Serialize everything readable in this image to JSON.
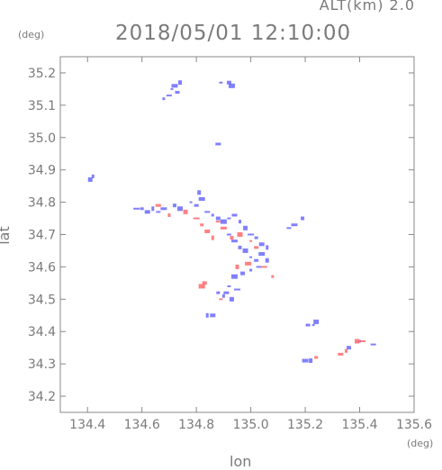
{
  "header": {
    "altitude": "ALT(km)  2.0",
    "timestamp": "2018/05/01  12:10:00"
  },
  "chart_data": {
    "type": "scatter",
    "title": "2018/05/01  12:10:00",
    "subtitle": "ALT(km)  2.0",
    "xlabel": "lon",
    "ylabel": "lat",
    "x_unit": "(deg)",
    "y_unit": "(deg)",
    "xlim": [
      134.3,
      135.6
    ],
    "ylim": [
      34.15,
      35.25
    ],
    "x_ticks": [
      "134.4",
      "134.6",
      "134.8",
      "135.0",
      "135.2",
      "135.4",
      "135.6"
    ],
    "y_ticks": [
      "34.2",
      "34.3",
      "34.4",
      "34.5",
      "34.6",
      "34.7",
      "34.8",
      "34.9",
      "35.0",
      "35.1",
      "35.2"
    ],
    "x_tick_values": [
      134.4,
      134.6,
      134.8,
      135.0,
      135.2,
      135.4,
      135.6
    ],
    "y_tick_values": [
      34.2,
      34.3,
      34.4,
      34.5,
      34.6,
      34.7,
      34.8,
      34.9,
      35.0,
      35.1,
      35.2
    ],
    "colors": {
      "blue": "#6a6aff",
      "red": "#ff6a6a",
      "purple": "#b58ad6"
    },
    "series": [
      {
        "values": [
          [
            134.71,
            35.15
          ],
          [
            134.73,
            35.14
          ],
          [
            134.72,
            35.16
          ],
          [
            134.74,
            35.17
          ],
          [
            134.7,
            35.13
          ],
          [
            134.68,
            35.12
          ],
          [
            134.92,
            35.17
          ],
          [
            134.93,
            35.16
          ],
          [
            134.89,
            35.17
          ],
          [
            134.88,
            34.98
          ],
          [
            134.42,
            34.88
          ],
          [
            134.41,
            34.87
          ],
          [
            134.58,
            34.78
          ],
          [
            134.6,
            34.78
          ],
          [
            134.62,
            34.77
          ],
          [
            134.64,
            34.78
          ],
          [
            134.66,
            34.77
          ],
          [
            134.68,
            34.78
          ],
          [
            134.72,
            34.79
          ],
          [
            134.74,
            34.78
          ],
          [
            134.78,
            34.8
          ],
          [
            134.8,
            34.79
          ],
          [
            134.82,
            34.81
          ],
          [
            134.81,
            34.83
          ],
          [
            134.84,
            34.77
          ],
          [
            134.86,
            34.76
          ],
          [
            134.88,
            34.75
          ],
          [
            134.9,
            34.74
          ],
          [
            134.92,
            34.75
          ],
          [
            134.94,
            34.76
          ],
          [
            134.96,
            34.74
          ],
          [
            134.98,
            34.72
          ],
          [
            135.0,
            34.7
          ],
          [
            135.02,
            34.69
          ],
          [
            135.04,
            34.67
          ],
          [
            135.06,
            34.66
          ],
          [
            134.92,
            34.7
          ],
          [
            134.94,
            34.68
          ],
          [
            134.96,
            34.66
          ],
          [
            134.98,
            34.65
          ],
          [
            135.0,
            34.63
          ],
          [
            135.02,
            34.62
          ],
          [
            135.04,
            34.64
          ],
          [
            135.06,
            34.62
          ],
          [
            135.03,
            34.6
          ],
          [
            135.0,
            34.59
          ],
          [
            134.97,
            34.58
          ],
          [
            134.94,
            34.57
          ],
          [
            134.92,
            34.54
          ],
          [
            134.91,
            34.52
          ],
          [
            134.9,
            34.51
          ],
          [
            134.93,
            34.5
          ],
          [
            134.95,
            34.53
          ],
          [
            134.88,
            34.52
          ],
          [
            134.86,
            34.45
          ],
          [
            134.84,
            34.45
          ],
          [
            135.14,
            34.72
          ],
          [
            135.16,
            34.73
          ],
          [
            135.19,
            34.75
          ],
          [
            135.24,
            34.43
          ],
          [
            135.23,
            34.42
          ],
          [
            135.21,
            34.42
          ],
          [
            135.2,
            34.31
          ],
          [
            135.22,
            34.31
          ],
          [
            135.45,
            34.36
          ],
          [
            135.4,
            34.37
          ],
          [
            135.36,
            34.35
          ]
        ]
      },
      {
        "values": [
          [
            134.66,
            34.79
          ],
          [
            134.7,
            34.76
          ],
          [
            134.76,
            34.77
          ],
          [
            134.8,
            34.75
          ],
          [
            134.82,
            34.73
          ],
          [
            134.84,
            34.71
          ],
          [
            134.86,
            34.69
          ],
          [
            134.88,
            34.74
          ],
          [
            134.9,
            34.72
          ],
          [
            134.93,
            34.69
          ],
          [
            134.96,
            34.7
          ],
          [
            135.0,
            34.68
          ],
          [
            135.02,
            34.66
          ],
          [
            134.99,
            34.61
          ],
          [
            134.95,
            34.6
          ],
          [
            135.05,
            34.6
          ],
          [
            135.08,
            34.57
          ],
          [
            134.83,
            34.55
          ],
          [
            134.82,
            34.54
          ],
          [
            134.89,
            34.5
          ],
          [
            135.33,
            34.33
          ],
          [
            135.35,
            34.34
          ],
          [
            135.39,
            34.37
          ],
          [
            135.41,
            34.37
          ],
          [
            135.24,
            34.32
          ]
        ]
      }
    ]
  }
}
